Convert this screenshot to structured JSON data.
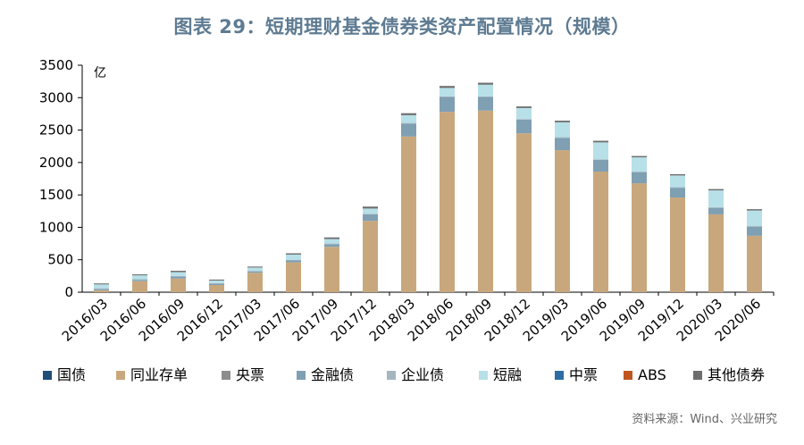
{
  "title": "图表 29：短期理财基金债券类资产配置情况（规模）",
  "source": "资料来源：Wind、兴业研究",
  "chart_data": {
    "type": "bar",
    "stacked": true,
    "title": "图表 29：短期理财基金债券类资产配置情况（规模）",
    "ylabel": "亿",
    "xlabel": "",
    "ylim": [
      0,
      3500
    ],
    "yticks": [
      0,
      500,
      1000,
      1500,
      2000,
      2500,
      3000,
      3500
    ],
    "grid": false,
    "legend_position": "bottom",
    "categories": [
      "2016/03",
      "2016/06",
      "2016/09",
      "2016/12",
      "2017/03",
      "2017/06",
      "2017/09",
      "2017/12",
      "2018/03",
      "2018/06",
      "2018/09",
      "2018/12",
      "2019/03",
      "2019/06",
      "2019/09",
      "2019/12",
      "2020/03",
      "2020/06"
    ],
    "series": [
      {
        "name": "国债",
        "color": "#1f4e79",
        "values": [
          0,
          0,
          0,
          0,
          0,
          0,
          0,
          0,
          0,
          0,
          0,
          0,
          0,
          0,
          0,
          0,
          0,
          0
        ]
      },
      {
        "name": "同业存单",
        "color": "#c9a77c",
        "values": [
          30,
          170,
          210,
          110,
          300,
          460,
          700,
          1100,
          2400,
          2780,
          2800,
          2450,
          2190,
          1860,
          1680,
          1460,
          1200,
          870
        ]
      },
      {
        "name": "央票",
        "color": "#8c8c8c",
        "values": [
          0,
          0,
          0,
          0,
          0,
          0,
          0,
          0,
          0,
          0,
          0,
          0,
          0,
          0,
          0,
          0,
          0,
          0
        ]
      },
      {
        "name": "金融债",
        "color": "#7f9fb3",
        "values": [
          20,
          20,
          30,
          20,
          20,
          30,
          40,
          100,
          200,
          230,
          210,
          210,
          190,
          180,
          170,
          150,
          100,
          140
        ]
      },
      {
        "name": "企业债",
        "color": "#a6b6c0",
        "values": [
          10,
          10,
          10,
          10,
          10,
          10,
          10,
          10,
          10,
          10,
          10,
          10,
          10,
          10,
          10,
          10,
          10,
          10
        ]
      },
      {
        "name": "短融",
        "color": "#b7e0e8",
        "values": [
          60,
          60,
          60,
          40,
          50,
          80,
          70,
          80,
          120,
          130,
          180,
          170,
          230,
          260,
          220,
          180,
          260,
          240
        ]
      },
      {
        "name": "中票",
        "color": "#2e6da4",
        "values": [
          0,
          0,
          0,
          0,
          0,
          0,
          0,
          0,
          0,
          0,
          0,
          0,
          0,
          0,
          0,
          0,
          0,
          0
        ]
      },
      {
        "name": "ABS",
        "color": "#c0561f",
        "values": [
          0,
          0,
          0,
          0,
          0,
          0,
          0,
          0,
          0,
          0,
          0,
          0,
          0,
          0,
          0,
          0,
          0,
          0
        ]
      },
      {
        "name": "其他债券",
        "color": "#6e6e6e",
        "values": [
          15,
          15,
          20,
          15,
          15,
          20,
          25,
          30,
          30,
          30,
          30,
          25,
          25,
          25,
          20,
          20,
          20,
          20
        ]
      }
    ]
  }
}
